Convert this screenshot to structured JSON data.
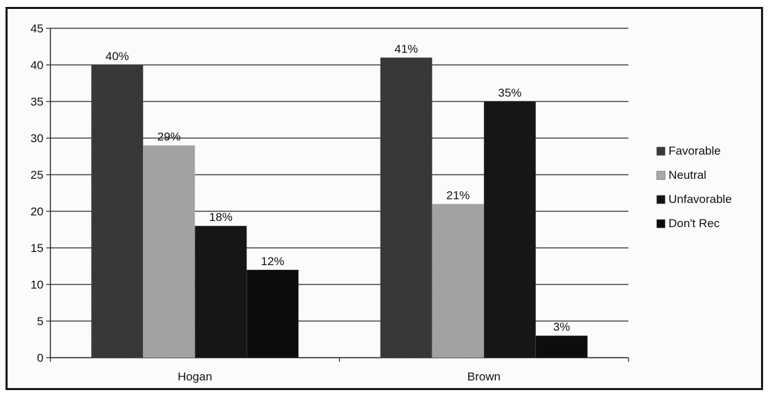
{
  "chart_data": {
    "type": "bar",
    "categories": [
      "Hogan",
      "Brown"
    ],
    "series": [
      {
        "name": "Favorable",
        "values": [
          40,
          41
        ],
        "labels": [
          "40%",
          "41%"
        ],
        "color": "#3a3a3a"
      },
      {
        "name": "Neutral",
        "values": [
          29,
          21
        ],
        "labels": [
          "29%",
          "21%"
        ],
        "color": "#a9a9a9"
      },
      {
        "name": "Unfavorable",
        "values": [
          18,
          35
        ],
        "labels": [
          "18%",
          "35%"
        ],
        "color": "#141414"
      },
      {
        "name": "Don't Rec",
        "values": [
          12,
          3
        ],
        "labels": [
          "12%",
          "3%"
        ],
        "color": "#0a0a0a"
      }
    ],
    "yticks": [
      "0",
      "5",
      "10",
      "15",
      "20",
      "25",
      "30",
      "35",
      "40",
      "45"
    ],
    "ylim": [
      0,
      45
    ],
    "grid": true,
    "legend_position": "right"
  }
}
